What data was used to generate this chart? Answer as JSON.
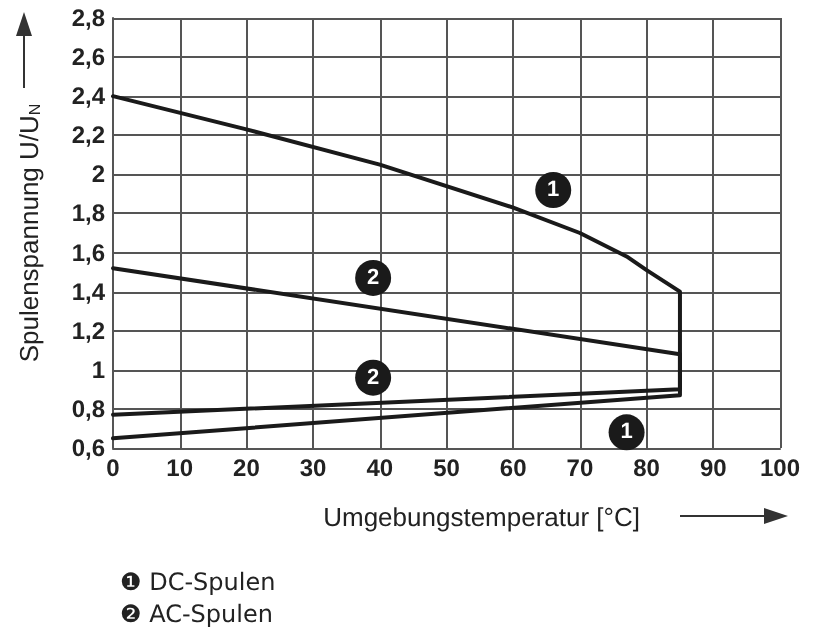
{
  "chart_data": {
    "type": "line",
    "xlabel": "Umgebungstemperatur [°C]",
    "ylabel": "Spulenspannung U/U$_{N}$",
    "series": [
      {
        "name": "❶ DC-Spulen",
        "color": "#1a1a1a",
        "x": [
          0,
          85,
          85,
          80,
          77,
          70,
          60,
          40,
          20,
          0
        ],
        "values": [
          0.65,
          0.87,
          1.4,
          1.51,
          1.58,
          1.7,
          1.83,
          2.05,
          2.23,
          2.4
        ]
      },
      {
        "name": "❷ AC-Spulen",
        "color": "#1a1a1a",
        "x": [
          0,
          85,
          85,
          0
        ],
        "values": [
          0.77,
          0.9,
          1.08,
          1.52
        ]
      }
    ],
    "annotations": [
      {
        "text": "1",
        "x": 66,
        "y": 1.92
      },
      {
        "text": "1",
        "x": 77,
        "y": 0.68
      },
      {
        "text": "2",
        "x": 39,
        "y": 1.47
      },
      {
        "text": "2",
        "x": 39,
        "y": 0.96
      }
    ],
    "xlim": [
      0,
      100
    ],
    "xticks": [
      0,
      10,
      20,
      30,
      40,
      50,
      60,
      70,
      80,
      90,
      100
    ],
    "ylim": [
      0.6,
      2.8
    ],
    "yticks": [
      {
        "value": 0.6,
        "label": "0,6"
      },
      {
        "value": 0.8,
        "label": "0,8"
      },
      1,
      {
        "value": 1.2,
        "label": "1,2"
      },
      {
        "value": 1.4,
        "label": "1,4"
      },
      {
        "value": 1.6,
        "label": "1,6"
      },
      {
        "value": 1.8,
        "label": "1,8"
      },
      2,
      {
        "value": 2.2,
        "label": "2,2"
      },
      {
        "value": 2.4,
        "label": "2,4"
      },
      {
        "value": 2.6,
        "label": "2,6"
      },
      {
        "value": 2.8,
        "label": "2,8"
      }
    ],
    "grid": true,
    "legend": "bottom left",
    "marker": "none",
    "line_style": "solid"
  }
}
